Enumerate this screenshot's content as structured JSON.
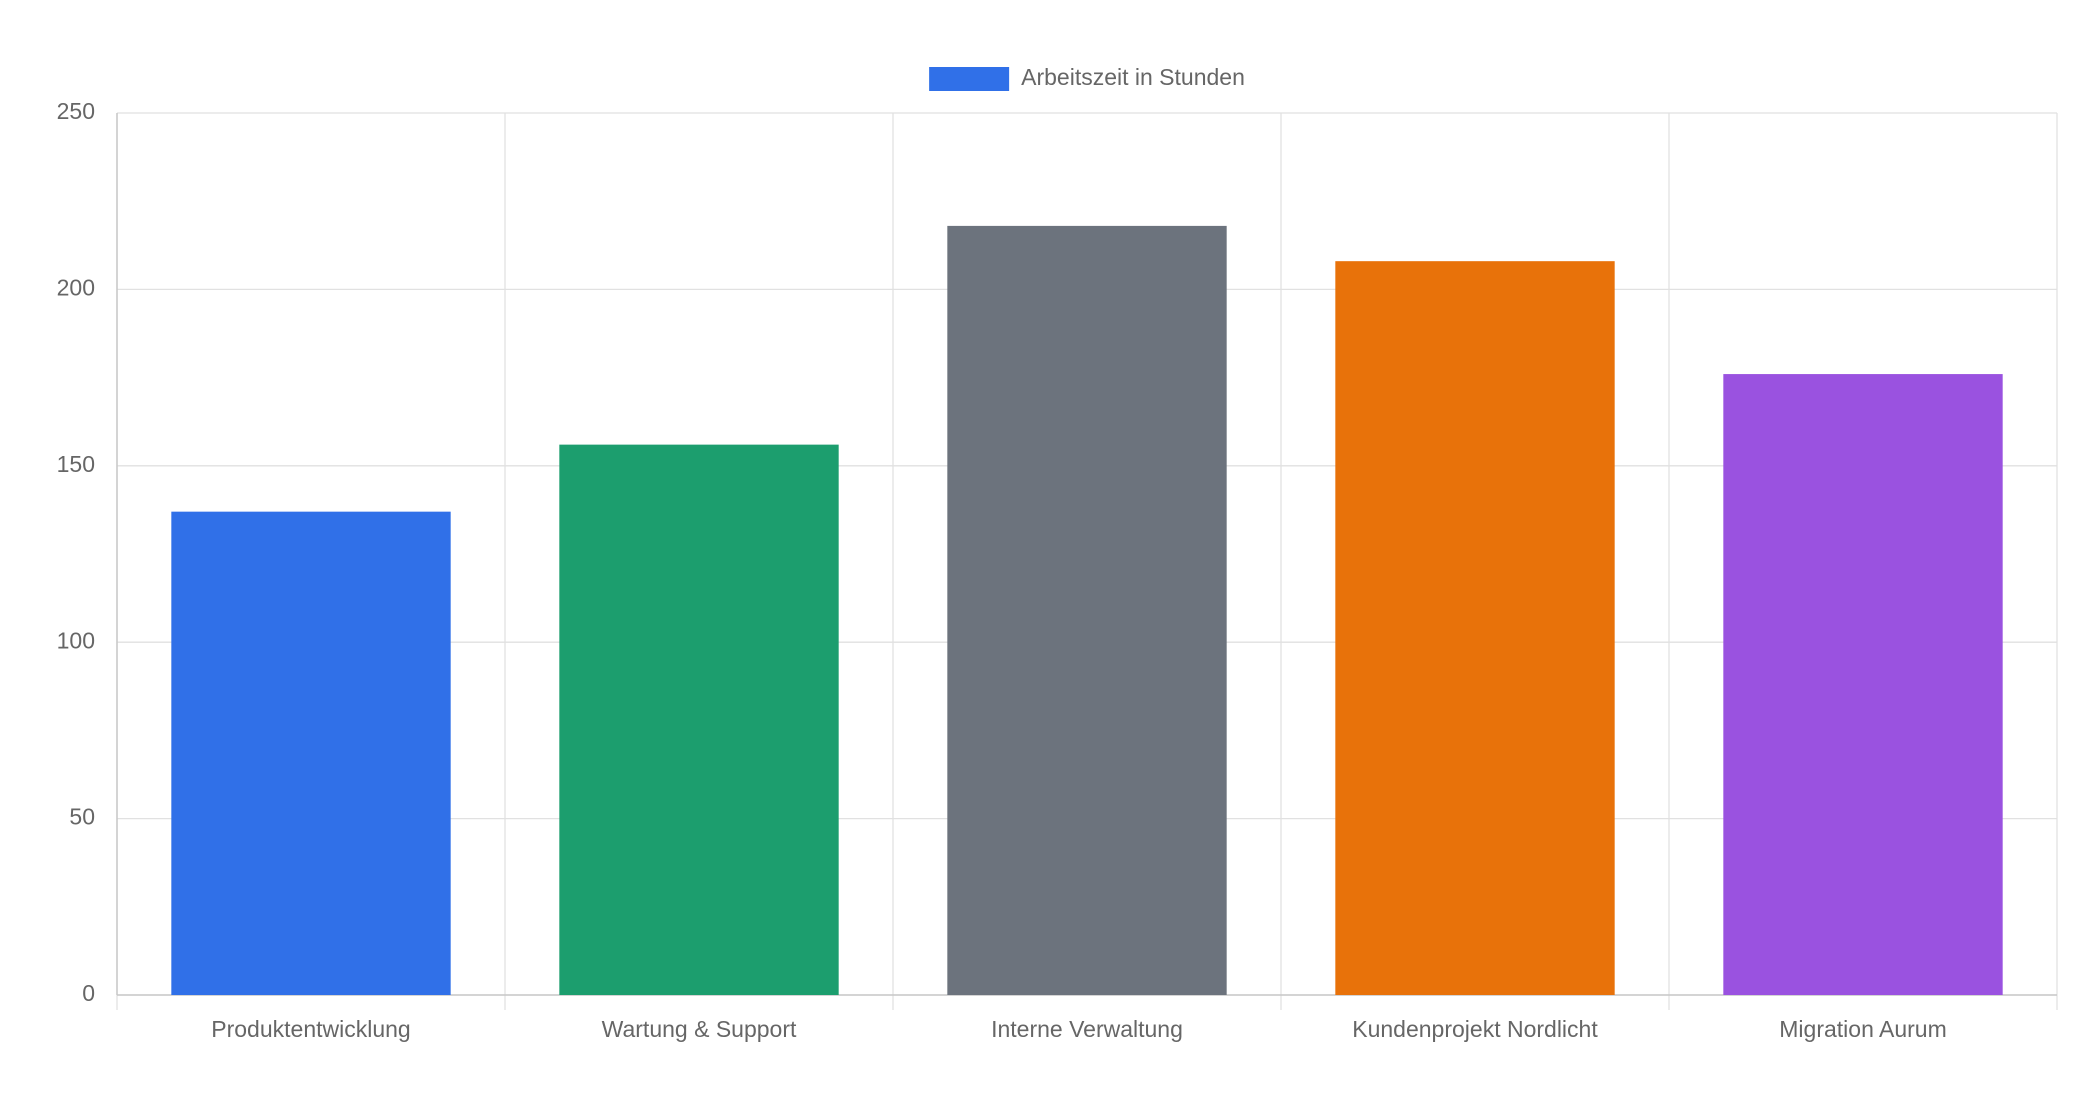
{
  "chart_data": {
    "type": "bar",
    "categories": [
      "Produktentwicklung",
      "Wartung & Support",
      "Interne Verwaltung",
      "Kundenprojekt Nordlicht",
      "Migration Aurum"
    ],
    "series": [
      {
        "name": "Arbeitszeit in Stunden",
        "colors": [
          "#3070e8",
          "#1c9e6e",
          "#6c737d",
          "#e8720a",
          "#9a52e0"
        ],
        "values": [
          137,
          156,
          218,
          208,
          176
        ]
      }
    ],
    "ylim": [
      0,
      250
    ],
    "yticks": [
      0,
      50,
      100,
      150,
      200,
      250
    ],
    "grid": true,
    "legend": "top"
  }
}
